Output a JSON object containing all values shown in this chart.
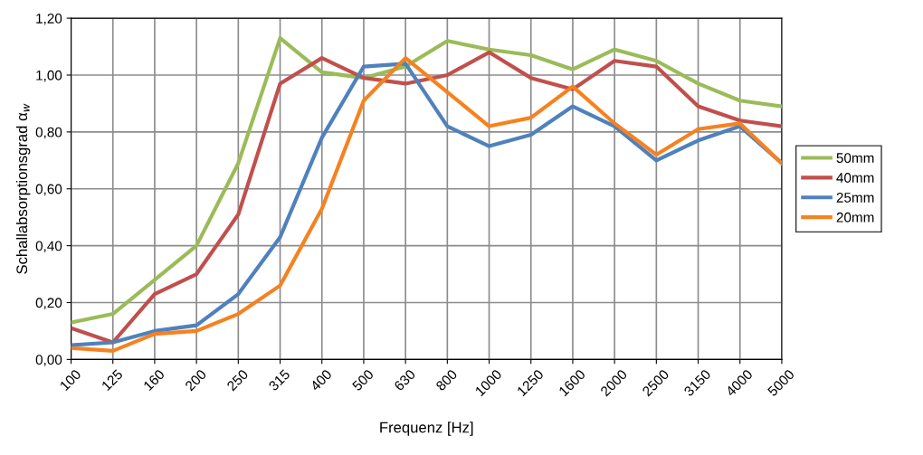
{
  "chart_data": {
    "type": "line",
    "xlabel": "Frequenz [Hz]",
    "ylabel": "Schallabsorptionsgrad α$_{w}$",
    "categories": [
      "100",
      "125",
      "160",
      "200",
      "250",
      "315",
      "400",
      "500",
      "630",
      "800",
      "1000",
      "1250",
      "1600",
      "2000",
      "2500",
      "3150",
      "4000",
      "5000"
    ],
    "series": [
      {
        "name": "50mm",
        "color": "#9bbb59",
        "values": [
          0.13,
          0.16,
          0.28,
          0.4,
          0.69,
          1.13,
          1.01,
          0.99,
          1.03,
          1.12,
          1.09,
          1.07,
          1.02,
          1.09,
          1.05,
          0.97,
          0.91,
          0.89
        ]
      },
      {
        "name": "40mm",
        "color": "#c0504d",
        "values": [
          0.11,
          0.06,
          0.23,
          0.3,
          0.51,
          0.97,
          1.06,
          0.99,
          0.97,
          1.0,
          1.08,
          0.99,
          0.95,
          1.05,
          1.03,
          0.89,
          0.84,
          0.82
        ]
      },
      {
        "name": "25mm",
        "color": "#4f81bd",
        "values": [
          0.05,
          0.06,
          0.1,
          0.12,
          0.23,
          0.43,
          0.78,
          1.03,
          1.04,
          0.82,
          0.75,
          0.79,
          0.89,
          0.82,
          0.7,
          0.77,
          0.82,
          0.69
        ]
      },
      {
        "name": "20mm",
        "color": "#f58220",
        "values": [
          0.04,
          0.03,
          0.09,
          0.1,
          0.16,
          0.26,
          0.53,
          0.91,
          1.06,
          0.94,
          0.82,
          0.85,
          0.96,
          0.83,
          0.72,
          0.81,
          0.83,
          0.69
        ]
      }
    ],
    "ylim": [
      0,
      1.2
    ],
    "yticks": [
      {
        "value": 0,
        "label": "0,00"
      },
      {
        "value": 0.2,
        "label": "0,20"
      },
      {
        "value": 0.4,
        "label": "0,40"
      },
      {
        "value": 0.6,
        "label": "0,60"
      },
      {
        "value": 0.8,
        "label": "0,80"
      },
      {
        "value": 1.0,
        "label": "1,00"
      },
      {
        "value": 1.2,
        "label": "1,20"
      }
    ],
    "grid": true,
    "legend": "right",
    "marker": "none",
    "line_style": "solid"
  }
}
